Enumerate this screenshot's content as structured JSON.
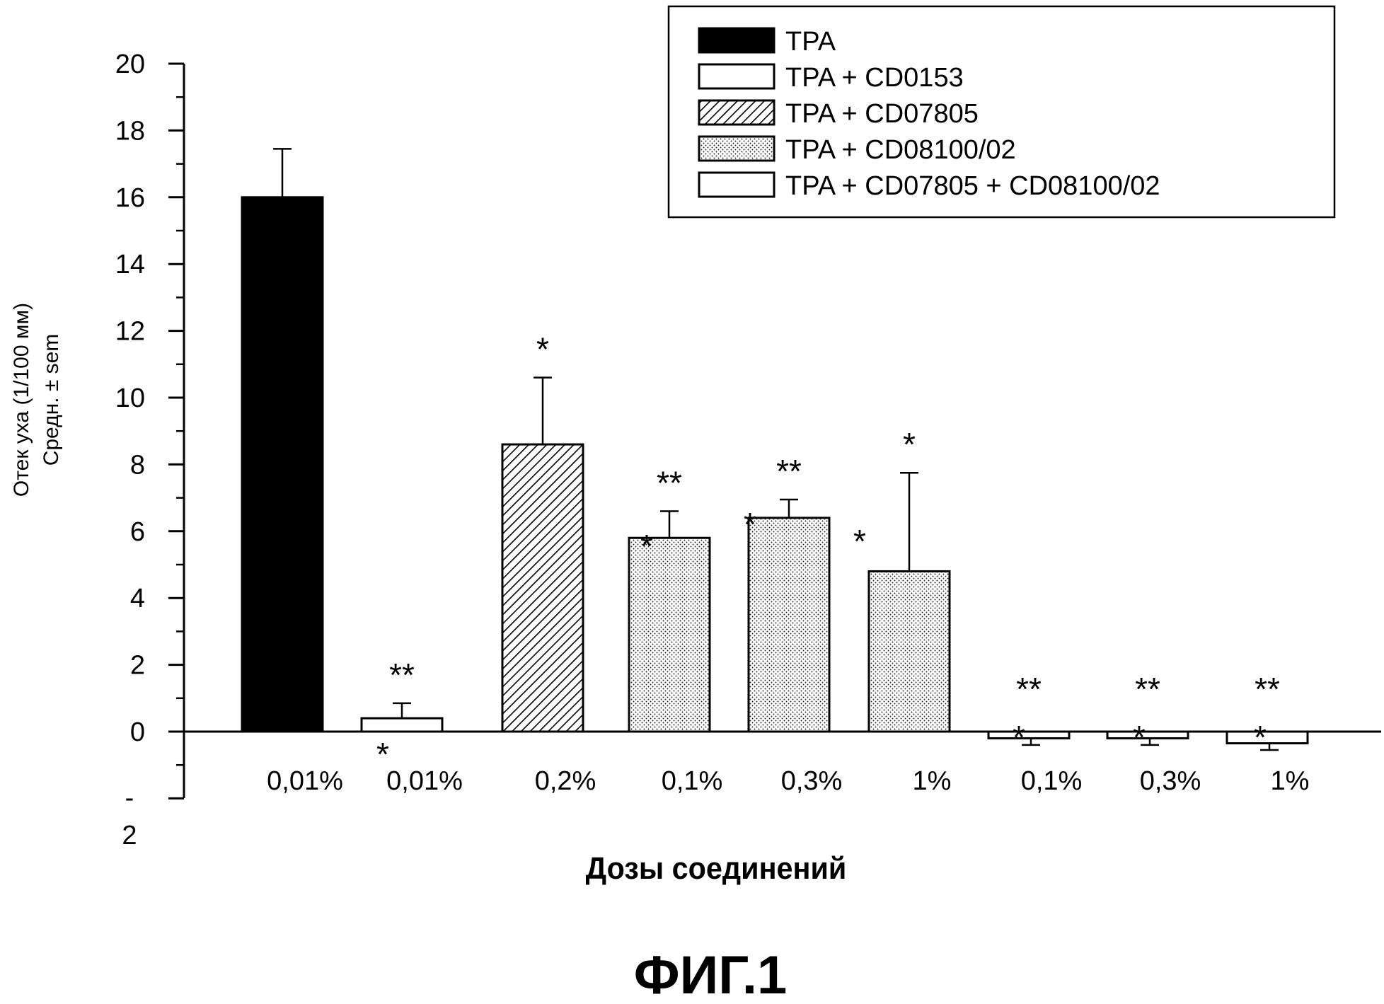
{
  "chart_data": {
    "type": "bar",
    "ylabel_lines": [
      "Отек уха (1/100 мм)",
      "Средн. ± sem"
    ],
    "xlabel": "Дозы соединений",
    "figure_caption": "ФИГ.1",
    "ylim": [
      -2,
      20
    ],
    "yticks": [
      {
        "value": 20,
        "label": "20"
      },
      {
        "value": 18,
        "label": "18"
      },
      {
        "value": 16,
        "label": "16"
      },
      {
        "value": 14,
        "label": "14"
      },
      {
        "value": 12,
        "label": "12"
      },
      {
        "value": 10,
        "label": "10"
      },
      {
        "value": 8,
        "label": "8"
      },
      {
        "value": 6,
        "label": "6"
      },
      {
        "value": 4,
        "label": "4"
      },
      {
        "value": 2,
        "label": "2"
      },
      {
        "value": 0,
        "label": "0"
      }
    ],
    "ytick_minus2_parts": [
      "-",
      "2"
    ],
    "categories": [
      "0,01%",
      "0,01%",
      "0,2%",
      "0,1%",
      "0,3%",
      "1%",
      "0,1%",
      "0,3%",
      "1%"
    ],
    "legend_position": "top-right",
    "series": [
      {
        "name": "TPA",
        "fill": "solid",
        "color": "#000000"
      },
      {
        "name": "TPA + CD0153",
        "fill": "white",
        "color": "#ffffff"
      },
      {
        "name": "TPA + CD07805",
        "fill": "hatch",
        "color": "#000000"
      },
      {
        "name": "TPA + CD08100/02",
        "fill": "dots",
        "color": "#000000"
      },
      {
        "name": "TPA + CD07805 + CD08100/02",
        "fill": "white",
        "color": "#ffffff"
      }
    ],
    "bars": [
      {
        "category_index": 0,
        "series_index": 0,
        "value": 16.0,
        "error": 1.45,
        "significance": ""
      },
      {
        "category_index": 1,
        "series_index": 1,
        "value": 0.4,
        "error": 0.45,
        "significance": "**\n*"
      },
      {
        "category_index": 2,
        "series_index": 2,
        "value": 8.6,
        "error": 2.0,
        "significance": "*"
      },
      {
        "category_index": 3,
        "series_index": 3,
        "value": 5.8,
        "error": 0.8,
        "significance": "**\n*"
      },
      {
        "category_index": 4,
        "series_index": 3,
        "value": 6.4,
        "error": 0.55,
        "significance": "**\n*"
      },
      {
        "category_index": 5,
        "series_index": 3,
        "value": 4.8,
        "error": 2.95,
        "significance": "*\n*"
      },
      {
        "category_index": 6,
        "series_index": 4,
        "value": -0.2,
        "error": 0.2,
        "significance": "**\n*"
      },
      {
        "category_index": 7,
        "series_index": 4,
        "value": -0.2,
        "error": 0.2,
        "significance": "**\n*"
      },
      {
        "category_index": 8,
        "series_index": 4,
        "value": -0.35,
        "error": 0.2,
        "significance": "**\n*"
      }
    ]
  }
}
